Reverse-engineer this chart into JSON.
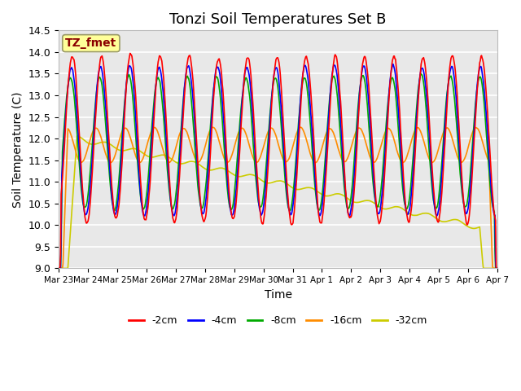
{
  "title": "Tonzi Soil Temperatures Set B",
  "xlabel": "Time",
  "ylabel": "Soil Temperature (C)",
  "ylim": [
    9.0,
    14.5
  ],
  "annotation_text": "TZ_fmet",
  "annotation_color": "#8B0000",
  "annotation_bg": "#FFFF99",
  "colors": {
    "-2cm": "#FF0000",
    "-4cm": "#0000FF",
    "-8cm": "#00AA00",
    "-16cm": "#FF8C00",
    "-32cm": "#CCCC00"
  },
  "line_width": 1.2,
  "bg_color": "#E8E8E8",
  "grid_color": "#FFFFFF",
  "tick_labels": [
    "Mar 23",
    "Mar 24",
    "Mar 25",
    "Mar 26",
    "Mar 27",
    "Mar 28",
    "Mar 29",
    "Mar 30",
    "Mar 31",
    "Apr 1",
    "Apr 2",
    "Apr 3",
    "Apr 4",
    "Apr 5",
    "Apr 6",
    "Apr 7"
  ],
  "yticks": [
    9.0,
    9.5,
    10.0,
    10.5,
    11.0,
    11.5,
    12.0,
    12.5,
    13.0,
    13.5,
    14.0,
    14.5
  ],
  "figsize": [
    6.4,
    4.8
  ],
  "dpi": 100
}
